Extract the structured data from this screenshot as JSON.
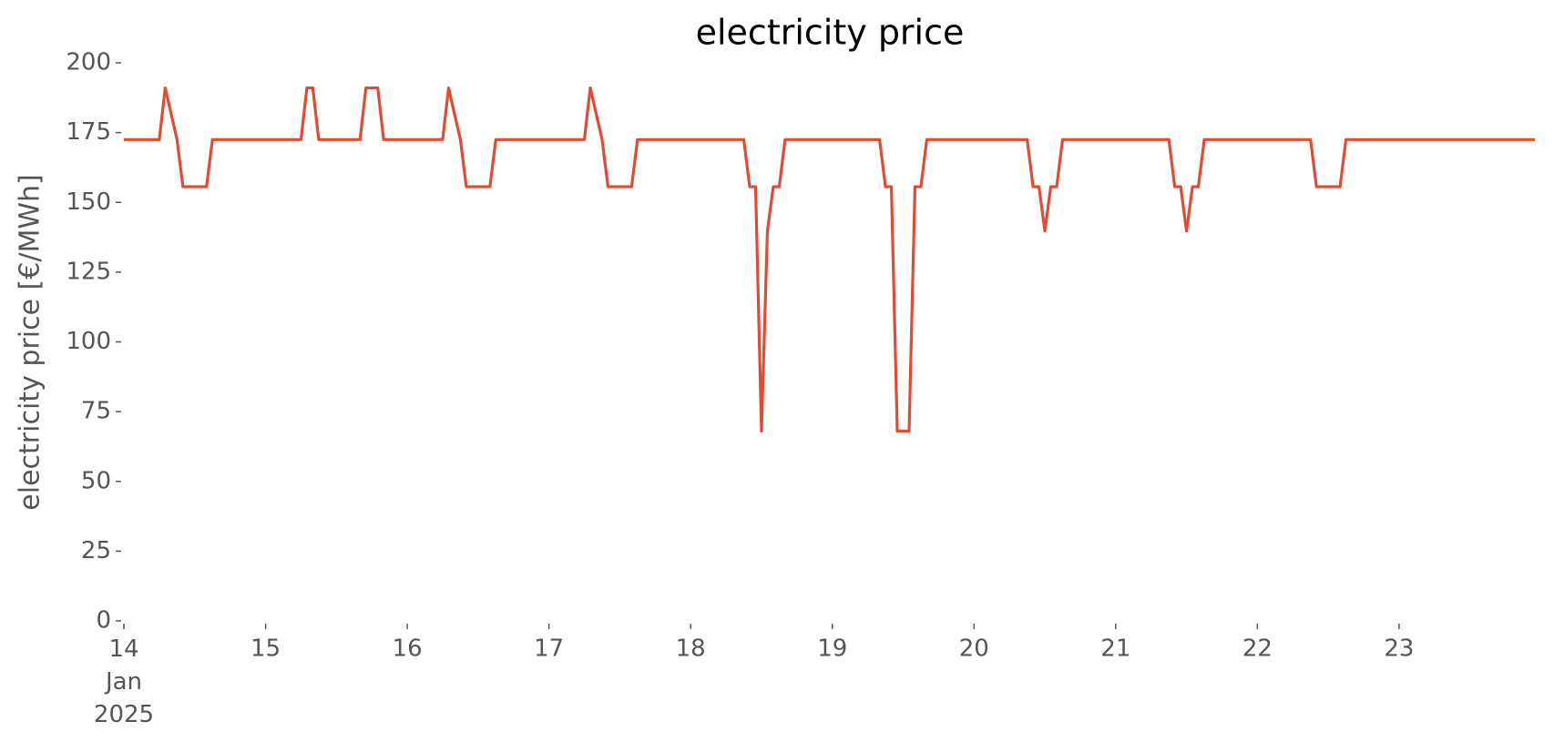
{
  "chart_data": {
    "type": "line",
    "title": "electricity price",
    "ylabel": "electricity price [€/MWh]",
    "x": [
      14,
      14.25,
      14.2917,
      14.375,
      14.4167,
      14.5833,
      14.625,
      15.25,
      15.2917,
      15.3333,
      15.375,
      15.6667,
      15.7083,
      15.7917,
      15.8333,
      16.25,
      16.2917,
      16.375,
      16.4167,
      16.5833,
      16.625,
      17.25,
      17.2917,
      17.375,
      17.4167,
      17.5833,
      17.625,
      18.375,
      18.4167,
      18.4583,
      18.5,
      18.5417,
      18.5833,
      18.625,
      18.6667,
      19.3333,
      19.375,
      19.4167,
      19.4583,
      19.5417,
      19.5833,
      19.625,
      19.6667,
      20.375,
      20.4167,
      20.4583,
      20.5,
      20.5417,
      20.5833,
      20.625,
      21.375,
      21.4167,
      21.4583,
      21.5,
      21.5417,
      21.5833,
      21.625,
      22.375,
      22.4167,
      22.5833,
      22.625,
      23.9583
    ],
    "series": [
      {
        "color": "#e24a33",
        "values": [
          172.5,
          172.5,
          191,
          172.5,
          155.6,
          155.6,
          172.5,
          172.5,
          191,
          191,
          172.5,
          172.5,
          191,
          191,
          172.5,
          172.5,
          191,
          172.5,
          155.6,
          155.6,
          172.5,
          172.5,
          191,
          172.5,
          155.6,
          155.6,
          172.5,
          172.5,
          155.6,
          155.6,
          68,
          139.7,
          155.6,
          155.6,
          172.5,
          172.5,
          155.6,
          155.6,
          68,
          68,
          155.6,
          155.6,
          172.5,
          172.5,
          155.6,
          155.6,
          139.7,
          155.6,
          155.6,
          172.5,
          172.5,
          155.6,
          155.6,
          139.7,
          155.6,
          155.6,
          172.5,
          172.5,
          155.6,
          155.6,
          172.5,
          172.5
        ]
      }
    ],
    "xlim": [
      14,
      23.9583
    ],
    "xticks": [
      {
        "value": 14,
        "label": "14\nJan\n2025"
      },
      15,
      16,
      17,
      18,
      19,
      20,
      21,
      22,
      23
    ],
    "ylim": [
      0,
      200
    ],
    "yticks": [
      0,
      25,
      50,
      75,
      100,
      125,
      150,
      175,
      200
    ],
    "grid": false
  }
}
